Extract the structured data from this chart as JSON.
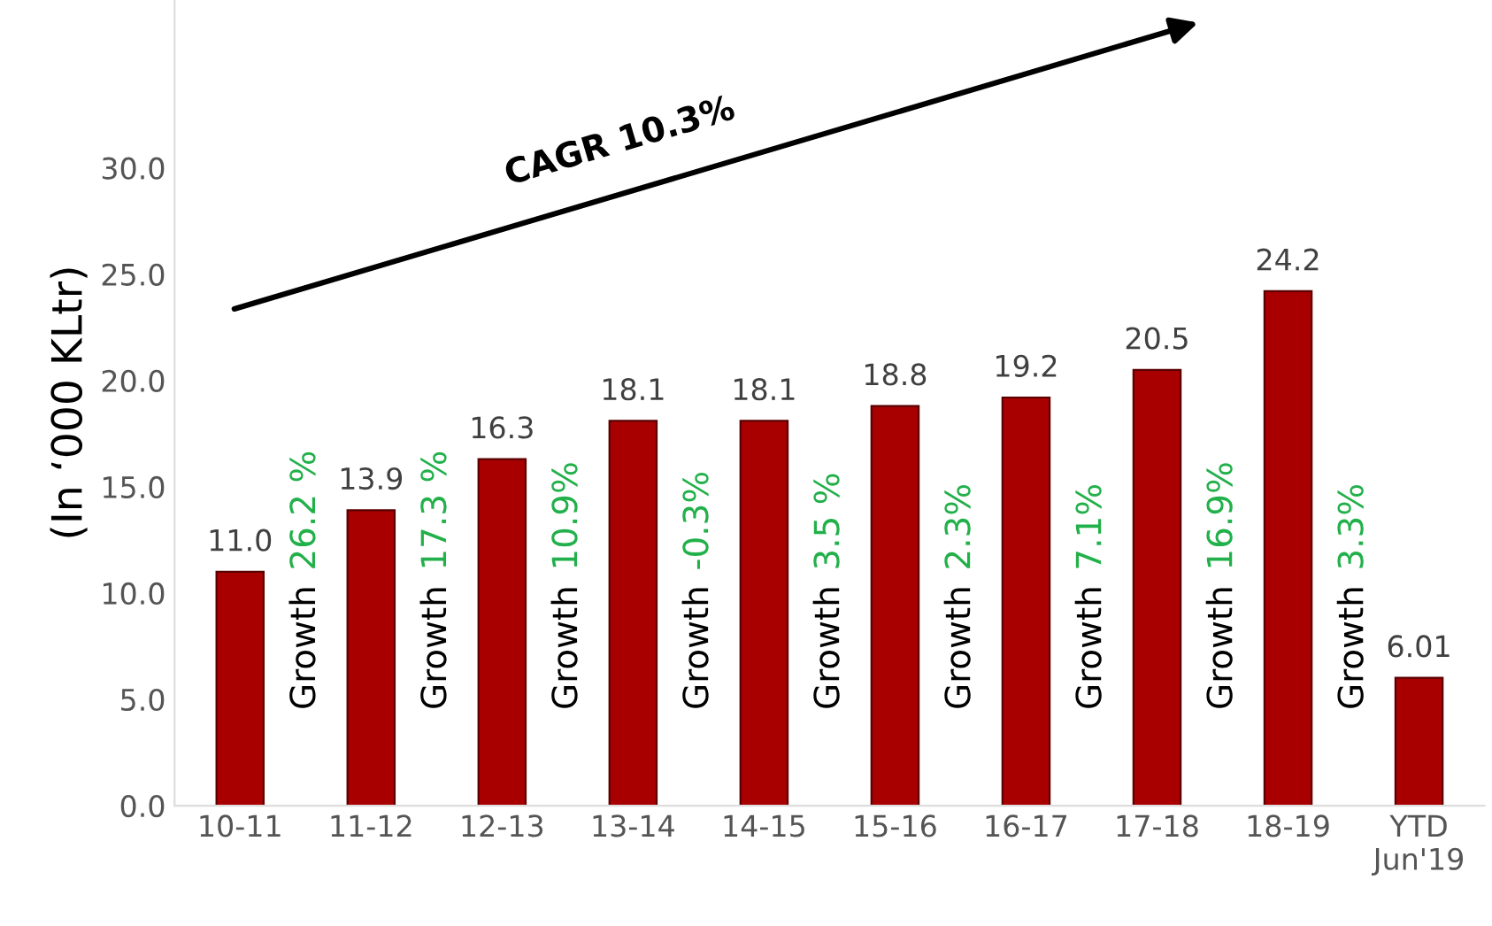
{
  "chart_data": {
    "type": "bar",
    "categories": [
      "10-11",
      "11-12",
      "12-13",
      "13-14",
      "14-15",
      "15-16",
      "16-17",
      "17-18",
      "18-19",
      "YTD\nJun'19"
    ],
    "values": [
      11.0,
      13.9,
      16.3,
      18.1,
      18.1,
      18.8,
      19.2,
      20.5,
      24.2,
      6.01
    ],
    "color": "#a80000",
    "ylabel": "(In ‘000 KLtr)",
    "ylim": [
      0,
      37.9
    ],
    "yticks": [
      {
        "value": 0,
        "label": "0.0"
      },
      {
        "value": 5,
        "label": "5.0"
      },
      {
        "value": 10,
        "label": "10.0"
      },
      {
        "value": 15,
        "label": "15.0"
      },
      {
        "value": 20,
        "label": "20.0"
      },
      {
        "value": 25,
        "label": "25.0"
      },
      {
        "value": 30,
        "label": "30.0"
      }
    ],
    "value_labels": [
      "11.0",
      "13.9",
      "16.3",
      "18.1",
      "18.1",
      "18.8",
      "19.2",
      "20.5",
      "24.2",
      "6.01"
    ],
    "grid": false,
    "legend": false,
    "annotations": [
      "Growth 26.2 %",
      "Growth 17.3 %",
      "Growth 10.9%",
      "Growth -0.3%",
      "Growth 3.5 %",
      "Growth 2.3%",
      "Growth 7.1%",
      "Growth 16.9%",
      "Growth 3.3%",
      "CAGR 10.3%"
    ]
  }
}
